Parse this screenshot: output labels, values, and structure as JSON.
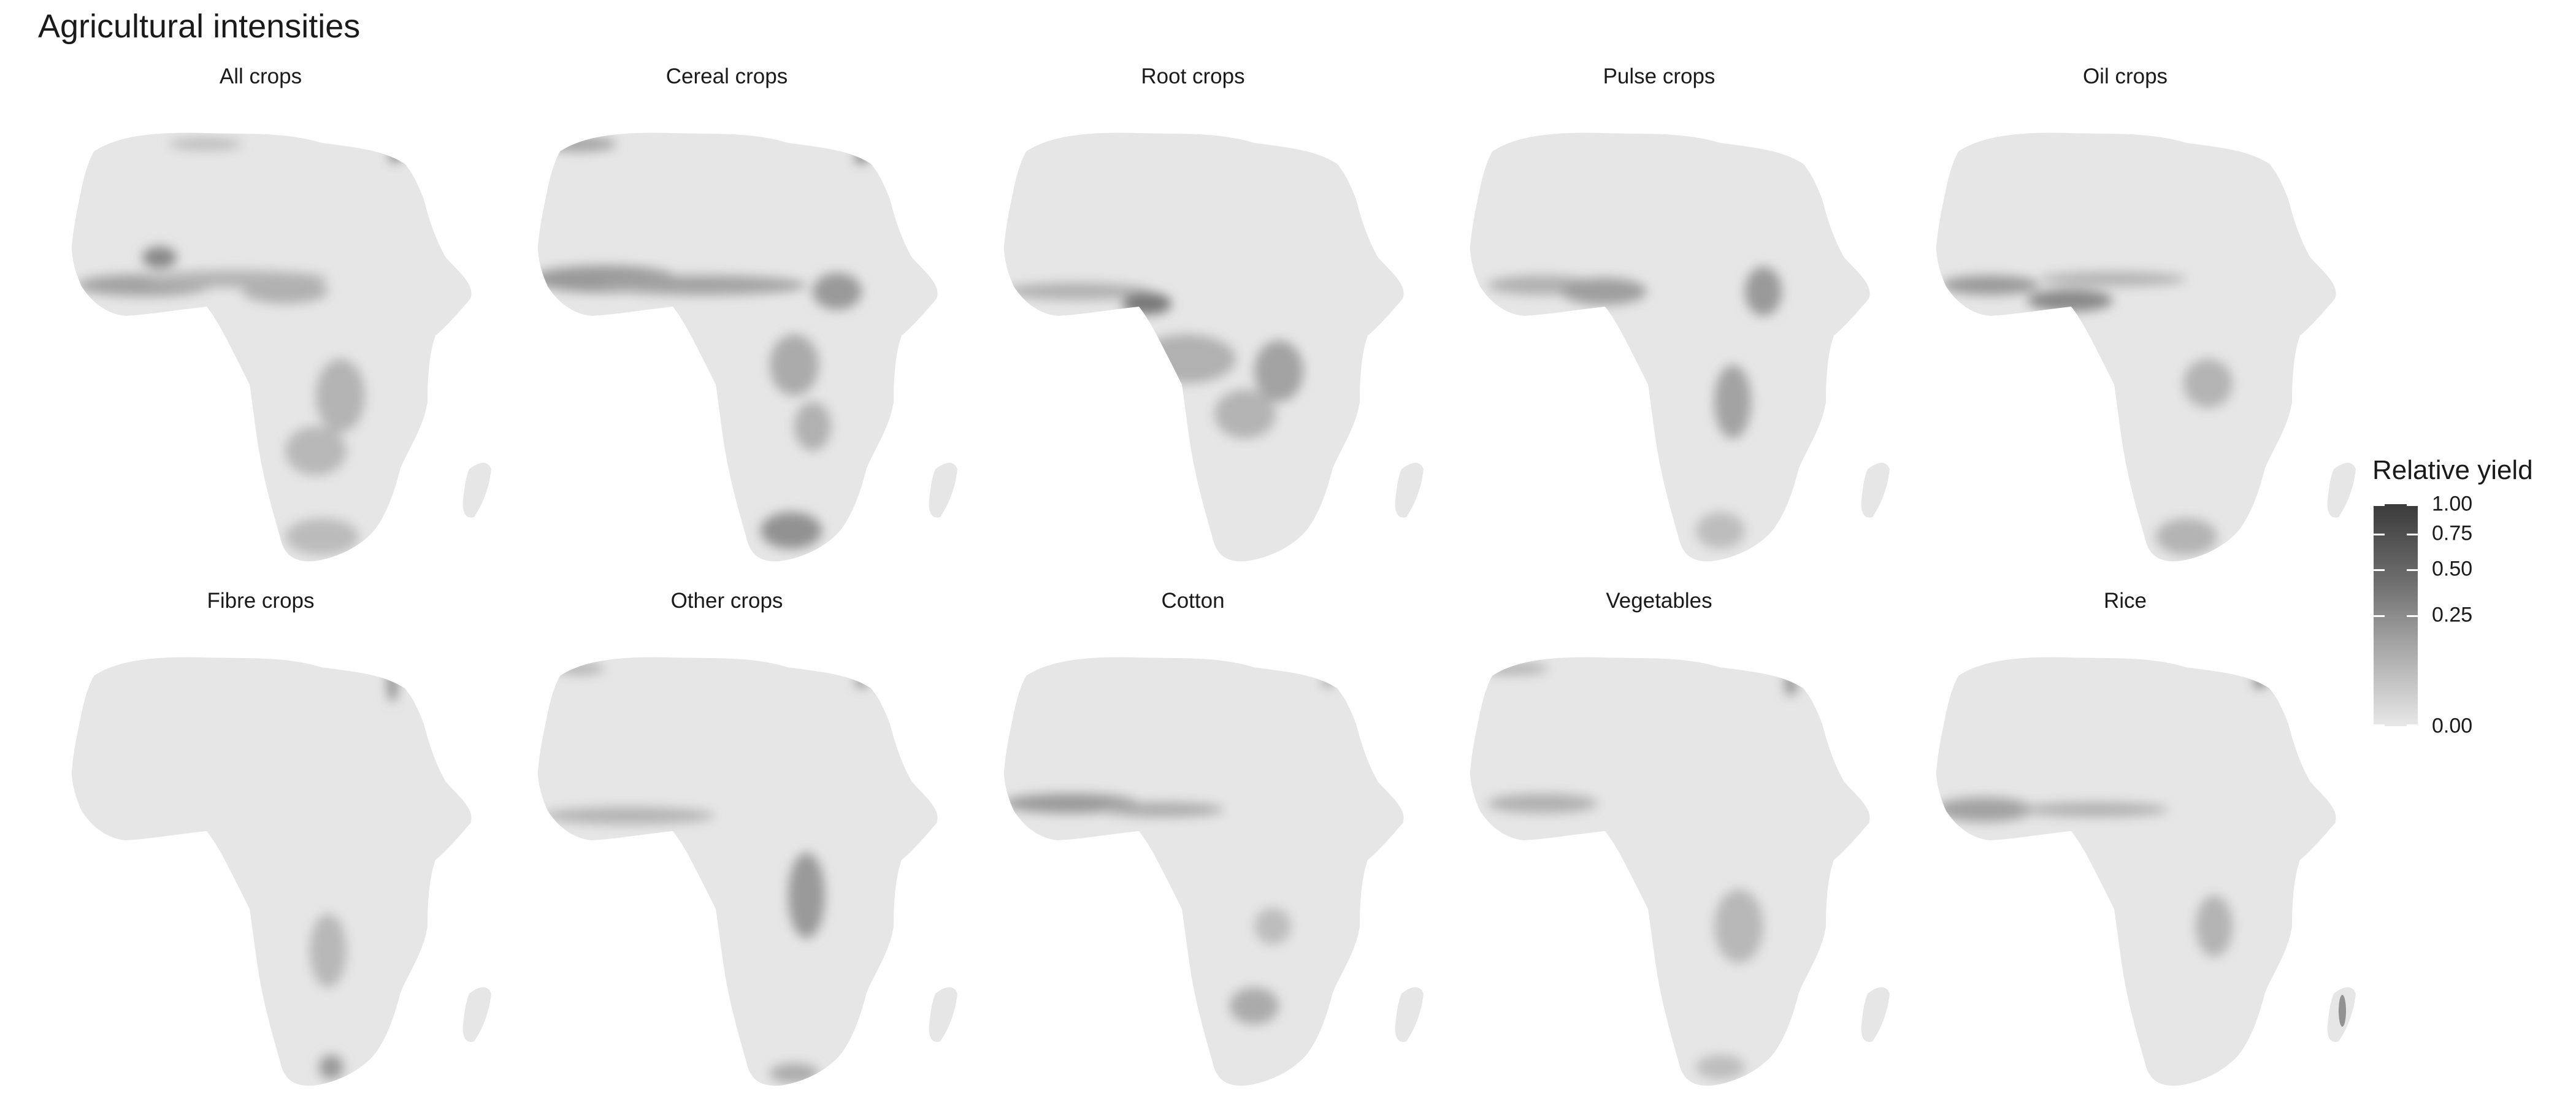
{
  "title": "Agricultural intensities",
  "panels": [
    {
      "label": "All crops"
    },
    {
      "label": "Cereal crops"
    },
    {
      "label": "Root crops"
    },
    {
      "label": "Pulse crops"
    },
    {
      "label": "Oil crops"
    },
    {
      "label": "Fibre crops"
    },
    {
      "label": "Other crops"
    },
    {
      "label": "Cotton"
    },
    {
      "label": "Vegetables"
    },
    {
      "label": "Rice"
    }
  ],
  "legend": {
    "title": "Relative yield",
    "ticks": [
      {
        "label": "1.00",
        "value": 1.0
      },
      {
        "label": "0.75",
        "value": 0.75
      },
      {
        "label": "0.50",
        "value": 0.5
      },
      {
        "label": "0.25",
        "value": 0.25
      },
      {
        "label": "0.00",
        "value": 0.0
      }
    ],
    "color_low": "#e8e8e8",
    "color_high": "#3b3b3b"
  },
  "colors": {
    "land": "#e6e6e6",
    "medium": "#b4b4b4",
    "high": "#6a6a6a",
    "peak": "#333333"
  }
}
